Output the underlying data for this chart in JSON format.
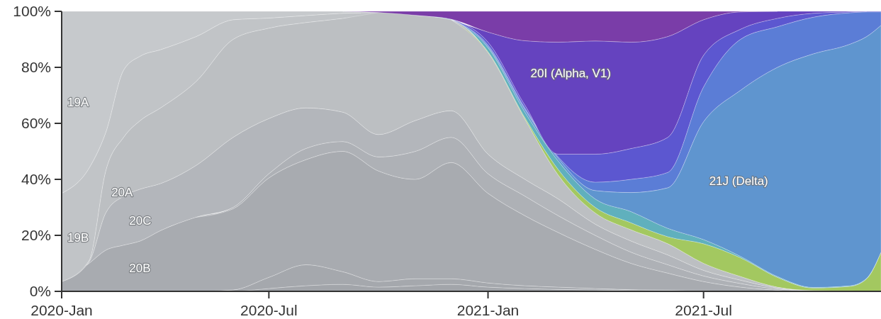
{
  "chart_data": {
    "type": "area",
    "stacked": true,
    "x": [
      "2020-01-09",
      "2020-02-01",
      "2020-02-15",
      "2020-03-01",
      "2020-03-15",
      "2020-04-01",
      "2020-05-01",
      "2020-06-01",
      "2020-07-01",
      "2020-08-01",
      "2020-09-01",
      "2020-10-01",
      "2020-11-01",
      "2020-12-01",
      "2021-01-01",
      "2021-02-01",
      "2021-03-01",
      "2021-04-01",
      "2021-05-01",
      "2021-06-01",
      "2021-07-01",
      "2021-08-01",
      "2021-09-01",
      "2021-10-01",
      "2021-11-01",
      "2021-11-15",
      "2021-11-27"
    ],
    "xlim": [
      "2020-01-09",
      "2021-11-27"
    ],
    "xticks": [
      {
        "value": "2020-01-09",
        "label": "2020-Jan"
      },
      {
        "value": "2020-07-01",
        "label": "2020-Jul"
      },
      {
        "value": "2021-01-01",
        "label": "2021-Jan"
      },
      {
        "value": "2021-07-01",
        "label": "2021-Jul"
      }
    ],
    "ylim": [
      0,
      100
    ],
    "yticks": [
      {
        "value": 0,
        "label": "0%"
      },
      {
        "value": 20,
        "label": "20%"
      },
      {
        "value": 40,
        "label": "40%"
      },
      {
        "value": 60,
        "label": "60%"
      },
      {
        "value": 80,
        "label": "80%"
      },
      {
        "value": 100,
        "label": "100%"
      }
    ],
    "series": [
      {
        "color": "#a2a5aa",
        "values": [
          null,
          null,
          null,
          null,
          null,
          null,
          null,
          0,
          1,
          2,
          2.5,
          1.5,
          2,
          2.5,
          1.5,
          1,
          0.7,
          0.5,
          0.3,
          0.2,
          0,
          null,
          null,
          null,
          null,
          null,
          null
        ]
      },
      {
        "color": "#a5a8ad",
        "values": [
          null,
          null,
          null,
          null,
          null,
          null,
          0,
          0.5,
          4,
          7.5,
          4.5,
          2,
          2.5,
          2,
          1.5,
          1,
          0.8,
          0.5,
          0.3,
          0.2,
          0.2,
          0,
          null,
          null,
          null,
          null,
          null
        ]
      },
      {
        "name": "20B",
        "color": "#a8abb0",
        "values": [
          3.5,
          10,
          14.7,
          16.5,
          18,
          21.7,
          26.5,
          29,
          35.5,
          37.5,
          43,
          39.5,
          35.5,
          41.5,
          32,
          25,
          19.5,
          14,
          9.4,
          6.1,
          3.3,
          1.5,
          0.4,
          0,
          null,
          null,
          null
        ]
      },
      {
        "color": "#aeb1b6",
        "values": [
          null,
          null,
          null,
          null,
          null,
          null,
          0,
          0.5,
          1.5,
          4,
          3.5,
          5,
          10,
          9,
          7,
          7,
          6,
          5,
          4,
          3,
          2,
          1.3,
          0.4,
          0.1,
          0,
          null,
          null
        ]
      },
      {
        "name": "20C",
        "color": "#b3b6bb",
        "values": [
          0,
          0.5,
          13.3,
          17.5,
          18.5,
          16.8,
          18.5,
          25,
          19.7,
          14.5,
          10.5,
          8,
          11,
          9.5,
          7,
          6,
          6,
          4,
          4,
          3.5,
          2,
          1.2,
          0.4,
          0.1,
          0.1,
          0,
          null
        ]
      },
      {
        "name": "20A",
        "color": "#bcbfc2",
        "values": [
          0,
          0.5,
          15,
          21,
          24.5,
          27,
          30,
          35,
          32.3,
          30.5,
          33.5,
          43.6,
          37.6,
          32.5,
          36.3,
          21.5,
          8.5,
          4,
          4,
          4,
          2.5,
          1.3,
          0.3,
          0.1,
          0.1,
          0,
          null
        ]
      },
      {
        "name": "19B",
        "color": "#c1c4c7",
        "values": [
          31.5,
          33,
          13.7,
          24,
          23,
          20.8,
          16,
          7,
          3.6,
          2.5,
          1.8,
          0,
          null,
          null,
          null,
          null,
          null,
          null,
          null,
          null,
          null,
          null,
          null,
          null,
          null,
          null,
          null
        ]
      },
      {
        "name": "19A",
        "color": "#c6c9cc",
        "values": [
          65,
          56,
          43.3,
          21,
          16,
          13.7,
          9,
          3,
          2.4,
          1.5,
          0.7,
          0,
          null,
          null,
          null,
          null,
          null,
          null,
          null,
          null,
          null,
          null,
          null,
          null,
          null,
          null,
          null
        ]
      },
      {
        "color": "#a3c860",
        "values": [
          null,
          null,
          null,
          null,
          null,
          null,
          null,
          null,
          null,
          null,
          null,
          null,
          null,
          0,
          0.3,
          0.5,
          2,
          2,
          2.5,
          2.5,
          7,
          6.7,
          3.5,
          0.9,
          1.6,
          4.5,
          14
        ]
      },
      {
        "color": "#60b0bd",
        "values": [
          null,
          null,
          null,
          null,
          null,
          null,
          null,
          null,
          null,
          null,
          null,
          null,
          0,
          0.2,
          1.4,
          2,
          3,
          3,
          4,
          3,
          1.5,
          0.5,
          0.3,
          0.2,
          0.2,
          0.2,
          0
        ]
      },
      {
        "name": "21J (Delta)",
        "color": "#5f95cf",
        "values": [
          null,
          null,
          null,
          null,
          null,
          null,
          null,
          null,
          null,
          null,
          null,
          null,
          null,
          0,
          0.5,
          1,
          1,
          3,
          6.8,
          14.5,
          42.1,
          59.3,
          74.7,
          83.4,
          86.3,
          86.3,
          81
        ]
      },
      {
        "color": "#5b7dd6",
        "values": [
          null,
          null,
          null,
          null,
          null,
          null,
          null,
          null,
          null,
          null,
          null,
          null,
          null,
          0,
          0.5,
          0.5,
          0.5,
          3,
          4.7,
          5.5,
          12.4,
          18.2,
          14.5,
          13.1,
          11.2,
          8.8,
          4.8
        ]
      },
      {
        "color": "#5c57d0",
        "values": [
          null,
          null,
          null,
          null,
          null,
          null,
          null,
          null,
          null,
          null,
          null,
          null,
          null,
          0,
          1,
          1,
          1,
          10,
          11,
          12.5,
          11.3,
          3.6,
          3,
          1.4,
          0.3,
          0.2,
          0.2
        ]
      },
      {
        "name": "20I (Alpha, V1)",
        "color": "#6543bf",
        "values": [
          null,
          null,
          null,
          null,
          null,
          null,
          null,
          null,
          null,
          null,
          null,
          null,
          null,
          0,
          3.6,
          23,
          40,
          40.4,
          38,
          36,
          12.7,
          6.2,
          2.5,
          0.7,
          0.2,
          0,
          null
        ]
      },
      {
        "color": "#7a3da8",
        "values": [
          null,
          null,
          null,
          null,
          null,
          null,
          null,
          null,
          null,
          null,
          0,
          0.4,
          1.4,
          2.8,
          7.4,
          10.5,
          11,
          10.6,
          11,
          9,
          3,
          0.2,
          0,
          null,
          null,
          null,
          null
        ]
      }
    ]
  }
}
